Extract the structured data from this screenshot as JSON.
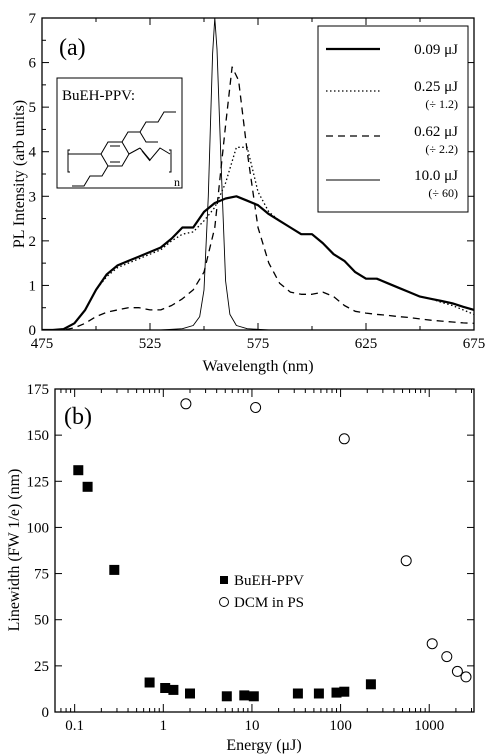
{
  "chart_data": [
    {
      "type": "line",
      "panel_label": "(a)",
      "xlabel": "Wavelength (nm)",
      "ylabel": "PL Intensity (arb units)",
      "xlim": [
        475,
        675
      ],
      "ylim": [
        0,
        7
      ],
      "xticks": [
        "475",
        "525",
        "575",
        "625",
        "675"
      ],
      "yticks": [
        "0",
        "1",
        "2",
        "3",
        "4",
        "5",
        "6",
        "7"
      ],
      "inset_label": "BuEH-PPV:",
      "inset_subscript": "n",
      "legend_position": "top-right",
      "series": [
        {
          "name": "0.09 μJ",
          "scale_note": "",
          "style": "solid-thick",
          "x": [
            475,
            480,
            485,
            490,
            495,
            500,
            505,
            510,
            515,
            520,
            525,
            530,
            535,
            540,
            545,
            550,
            555,
            560,
            565,
            570,
            575,
            580,
            585,
            590,
            595,
            600,
            605,
            610,
            615,
            620,
            625,
            630,
            635,
            640,
            645,
            650,
            655,
            660,
            665,
            670,
            675
          ],
          "y": [
            0,
            0,
            0.02,
            0.15,
            0.45,
            0.9,
            1.25,
            1.45,
            1.55,
            1.65,
            1.75,
            1.85,
            2.05,
            2.3,
            2.3,
            2.65,
            2.85,
            2.95,
            3.0,
            2.9,
            2.8,
            2.6,
            2.45,
            2.3,
            2.15,
            2.15,
            1.95,
            1.7,
            1.55,
            1.3,
            1.15,
            1.15,
            1.05,
            0.95,
            0.85,
            0.75,
            0.7,
            0.65,
            0.6,
            0.52,
            0.45
          ]
        },
        {
          "name": "0.25 μJ",
          "scale_note": "(÷ 1.2)",
          "style": "dotted",
          "x": [
            475,
            480,
            485,
            490,
            495,
            500,
            505,
            510,
            515,
            520,
            525,
            530,
            535,
            540,
            545,
            550,
            555,
            560,
            565,
            570,
            575,
            580,
            585,
            590,
            595,
            600,
            605,
            610,
            615,
            620,
            625,
            630,
            635,
            640,
            645,
            650,
            655,
            660,
            665,
            670,
            675
          ],
          "y": [
            0,
            0,
            0.02,
            0.15,
            0.45,
            0.9,
            1.2,
            1.4,
            1.5,
            1.6,
            1.7,
            1.8,
            2.0,
            2.15,
            2.2,
            2.45,
            2.75,
            3.3,
            4.1,
            4.1,
            3.1,
            2.65,
            2.45,
            2.3,
            2.15,
            2.15,
            1.95,
            1.7,
            1.55,
            1.3,
            1.15,
            1.15,
            1.05,
            0.95,
            0.85,
            0.75,
            0.7,
            0.62,
            0.55,
            0.45,
            0.35
          ]
        },
        {
          "name": "0.62 μJ",
          "scale_note": "(÷ 2.2)",
          "style": "dashed",
          "x": [
            475,
            480,
            485,
            490,
            495,
            500,
            505,
            510,
            515,
            520,
            525,
            530,
            535,
            540,
            545,
            550,
            555,
            560,
            563,
            566,
            570,
            575,
            580,
            585,
            590,
            595,
            600,
            605,
            610,
            615,
            620,
            625,
            630,
            635,
            640,
            645,
            650,
            655,
            660,
            665,
            670,
            675
          ],
          "y": [
            0,
            0,
            0,
            0.05,
            0.15,
            0.3,
            0.4,
            0.45,
            0.5,
            0.5,
            0.45,
            0.45,
            0.55,
            0.7,
            0.9,
            1.3,
            2.3,
            4.6,
            5.9,
            5.6,
            4.0,
            2.3,
            1.5,
            1.05,
            0.85,
            0.8,
            0.8,
            0.85,
            0.75,
            0.55,
            0.42,
            0.38,
            0.35,
            0.33,
            0.3,
            0.28,
            0.25,
            0.22,
            0.2,
            0.18,
            0.16,
            0.15
          ]
        },
        {
          "name": "10.0 μJ",
          "scale_note": "(÷ 60)",
          "style": "solid-thin",
          "x": [
            475,
            530,
            540,
            545,
            548,
            550,
            552,
            554,
            555,
            556,
            558,
            560,
            562,
            565,
            570,
            580,
            675
          ],
          "y": [
            0,
            0,
            0.03,
            0.1,
            0.3,
            0.9,
            3.0,
            6.2,
            7.0,
            6.3,
            3.6,
            1.1,
            0.35,
            0.1,
            0.03,
            0,
            0
          ]
        }
      ]
    },
    {
      "type": "scatter",
      "panel_label": "(b)",
      "xlabel": "Energy (μJ)",
      "ylabel": "Linewidth (FW 1/e) (nm)",
      "xscale": "log",
      "xlim": [
        0.06,
        3200
      ],
      "ylim": [
        0,
        175
      ],
      "xticks": [
        "0.1",
        "1",
        "10",
        "100",
        "1000"
      ],
      "yticks": [
        "0",
        "25",
        "50",
        "75",
        "100",
        "125",
        "150",
        "175"
      ],
      "legend_position": "center",
      "series": [
        {
          "name": "BuEH-PPV",
          "marker": "filled-square",
          "x": [
            0.11,
            0.14,
            0.28,
            0.7,
            1.05,
            1.3,
            2.0,
            5.2,
            8.2,
            10.5,
            33,
            57,
            90,
            110,
            220
          ],
          "y": [
            131,
            122,
            77,
            16,
            13,
            12,
            10,
            8.5,
            9,
            8.5,
            10,
            10,
            10.5,
            11,
            15
          ]
        },
        {
          "name": "DCM in PS",
          "marker": "open-circle",
          "x": [
            1.8,
            11,
            110,
            550,
            1080,
            1580,
            2080,
            2600
          ],
          "y": [
            167,
            165,
            148,
            82,
            37,
            30,
            22,
            19
          ]
        }
      ]
    }
  ]
}
